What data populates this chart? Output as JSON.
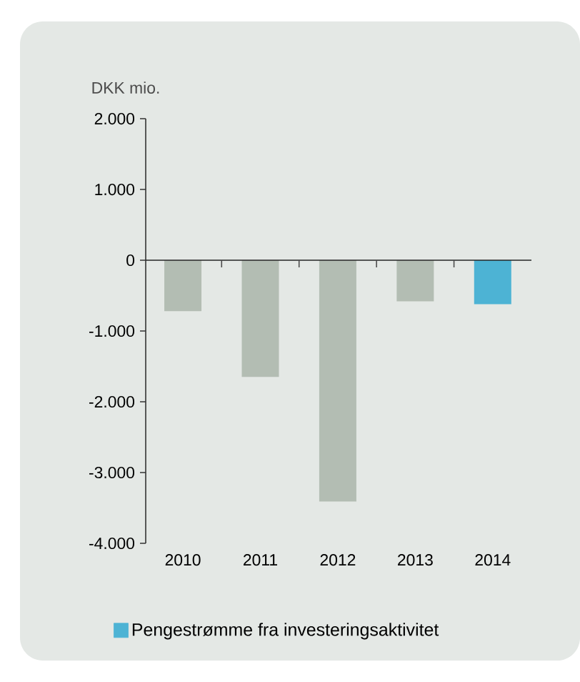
{
  "chart_data": {
    "type": "bar",
    "ylabel": "DKK mio.",
    "categories": [
      "2010",
      "2011",
      "2012",
      "2013",
      "2014"
    ],
    "series": [
      {
        "name": "Pengestrømme fra investeringsaktivitet",
        "color": "#4db3d4",
        "colors": [
          "#b3bdb3",
          "#b3bdb3",
          "#b3bdb3",
          "#b3bdb3",
          "#4db3d4"
        ],
        "values": [
          -720,
          -1650,
          -3410,
          -580,
          -620
        ]
      }
    ],
    "ylim": [
      -4000,
      2000
    ],
    "yticks": [
      {
        "value": 2000,
        "label": "2.000"
      },
      {
        "value": 1000,
        "label": "1.000"
      },
      {
        "value": 0,
        "label": "0"
      },
      {
        "value": -1000,
        "label": "-1.000"
      },
      {
        "value": -2000,
        "label": "-2.000"
      },
      {
        "value": -3000,
        "label": "-3.000"
      },
      {
        "value": -4000,
        "label": "-4.000"
      }
    ],
    "legend": "bottom"
  }
}
